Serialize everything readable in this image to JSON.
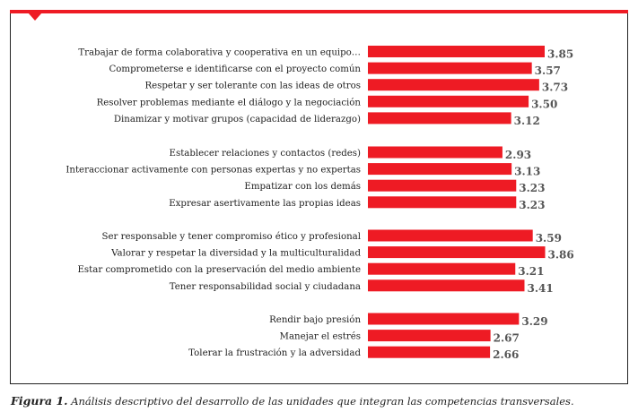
{
  "colors": {
    "accent": "#ee1b24",
    "label": "#222222",
    "value": "#555555"
  },
  "caption": {
    "prefix": "Figura 1.",
    "text": "Análisis descriptivo del desarrollo de las unidades que integran las competencias transversales."
  },
  "chart_data": {
    "type": "bar",
    "orientation": "horizontal",
    "title": "",
    "xlabel": "",
    "ylabel": "",
    "xlim": [
      0,
      4
    ],
    "grid": false,
    "groups": [
      {
        "categories": [
          "Trabajar de forma colaborativa y cooperativa en un equipo…",
          "Comprometerse e identificarse con el proyecto común",
          "Respetar y ser tolerante con las ideas de otros",
          "Resolver problemas mediante el diálogo y la negociación",
          "Dinamizar y motivar grupos (capacidad de liderazgo)"
        ],
        "values": [
          3.85,
          3.57,
          3.73,
          3.5,
          3.12
        ],
        "labels": [
          "3.85",
          "3.57",
          "3.73",
          "3.50",
          "3.12"
        ]
      },
      {
        "categories": [
          "Establecer relaciones y contactos (redes)",
          "Interaccionar activamente con personas expertas y no expertas",
          "Empatizar con los demás",
          "Expresar asertivamente las propias ideas"
        ],
        "values": [
          2.93,
          3.13,
          3.23,
          3.23
        ],
        "labels": [
          "2.93",
          "3.13",
          "3.23",
          "3.23"
        ]
      },
      {
        "categories": [
          "Ser responsable y tener compromiso ético y profesional",
          "Valorar y respetar la diversidad y la multiculturalidad",
          "Estar comprometido con la preservación del medio ambiente",
          "Tener responsabilidad social y ciudadana"
        ],
        "values": [
          3.59,
          3.86,
          3.21,
          3.41
        ],
        "labels": [
          "3.59",
          "3.86",
          "3.21",
          "3.41"
        ]
      },
      {
        "categories": [
          "Rendir bajo presión",
          "Manejar el estrés",
          "Tolerar la frustración y la adversidad"
        ],
        "values": [
          3.29,
          2.67,
          2.66
        ],
        "labels": [
          "3.29",
          "2.67",
          "2.66"
        ]
      }
    ]
  }
}
